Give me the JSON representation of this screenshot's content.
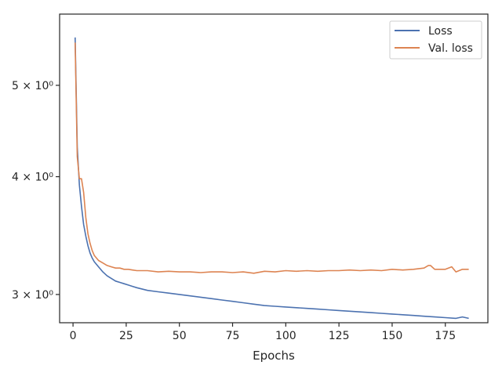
{
  "chart_data": {
    "type": "line",
    "title": "",
    "xlabel": "Epochs",
    "ylabel": "",
    "xlim": [
      -6.3,
      195
    ],
    "ylim": [
      2.8,
      5.95
    ],
    "yscale": "log",
    "grid": false,
    "legend_position": "top-right",
    "x_ticks": [
      0,
      25,
      50,
      75,
      100,
      125,
      150,
      175
    ],
    "x_tick_labels": [
      "0",
      "25",
      "50",
      "75",
      "100",
      "125",
      "150",
      "175"
    ],
    "y_ticks": [
      3,
      4,
      5
    ],
    "y_tick_labels": [
      "3 × 10⁰",
      "4 × 10⁰",
      "5 × 10⁰"
    ],
    "colors": {
      "loss": "#4c72b0",
      "val_loss": "#dd8452",
      "axes": "#262626"
    },
    "series": [
      {
        "name": "Loss",
        "key": "loss",
        "x": [
          1,
          2,
          3,
          4,
          5,
          6,
          7,
          8,
          9,
          10,
          12,
          14,
          16,
          18,
          20,
          22,
          24,
          26,
          28,
          30,
          35,
          40,
          45,
          50,
          55,
          60,
          65,
          70,
          75,
          80,
          85,
          90,
          95,
          100,
          105,
          110,
          115,
          120,
          125,
          130,
          135,
          140,
          145,
          150,
          155,
          160,
          165,
          170,
          175,
          180,
          183,
          186
        ],
        "values": [
          5.62,
          4.3,
          3.92,
          3.72,
          3.56,
          3.46,
          3.38,
          3.32,
          3.28,
          3.25,
          3.21,
          3.17,
          3.14,
          3.12,
          3.1,
          3.09,
          3.08,
          3.07,
          3.06,
          3.05,
          3.03,
          3.02,
          3.01,
          3.0,
          2.99,
          2.98,
          2.97,
          2.96,
          2.95,
          2.94,
          2.93,
          2.92,
          2.915,
          2.91,
          2.905,
          2.9,
          2.895,
          2.89,
          2.885,
          2.88,
          2.875,
          2.87,
          2.865,
          2.86,
          2.855,
          2.85,
          2.845,
          2.84,
          2.835,
          2.83,
          2.84,
          2.83
        ]
      },
      {
        "name": "Val. loss",
        "key": "val_loss",
        "x": [
          1,
          2,
          3,
          4,
          5,
          6,
          7,
          8,
          9,
          10,
          12,
          14,
          16,
          18,
          20,
          22,
          24,
          26,
          28,
          30,
          35,
          40,
          45,
          50,
          55,
          60,
          65,
          70,
          75,
          80,
          85,
          90,
          95,
          100,
          105,
          110,
          115,
          120,
          125,
          130,
          135,
          140,
          145,
          150,
          155,
          160,
          165,
          167,
          168,
          170,
          175,
          178,
          180,
          183,
          186
        ],
        "values": [
          5.55,
          4.2,
          3.98,
          3.98,
          3.85,
          3.62,
          3.48,
          3.4,
          3.34,
          3.3,
          3.26,
          3.24,
          3.22,
          3.21,
          3.2,
          3.2,
          3.19,
          3.19,
          3.185,
          3.18,
          3.18,
          3.17,
          3.175,
          3.17,
          3.17,
          3.165,
          3.17,
          3.17,
          3.165,
          3.17,
          3.16,
          3.175,
          3.17,
          3.18,
          3.175,
          3.18,
          3.175,
          3.18,
          3.18,
          3.185,
          3.18,
          3.185,
          3.18,
          3.19,
          3.185,
          3.19,
          3.2,
          3.22,
          3.22,
          3.19,
          3.19,
          3.21,
          3.17,
          3.19,
          3.19
        ]
      }
    ]
  }
}
